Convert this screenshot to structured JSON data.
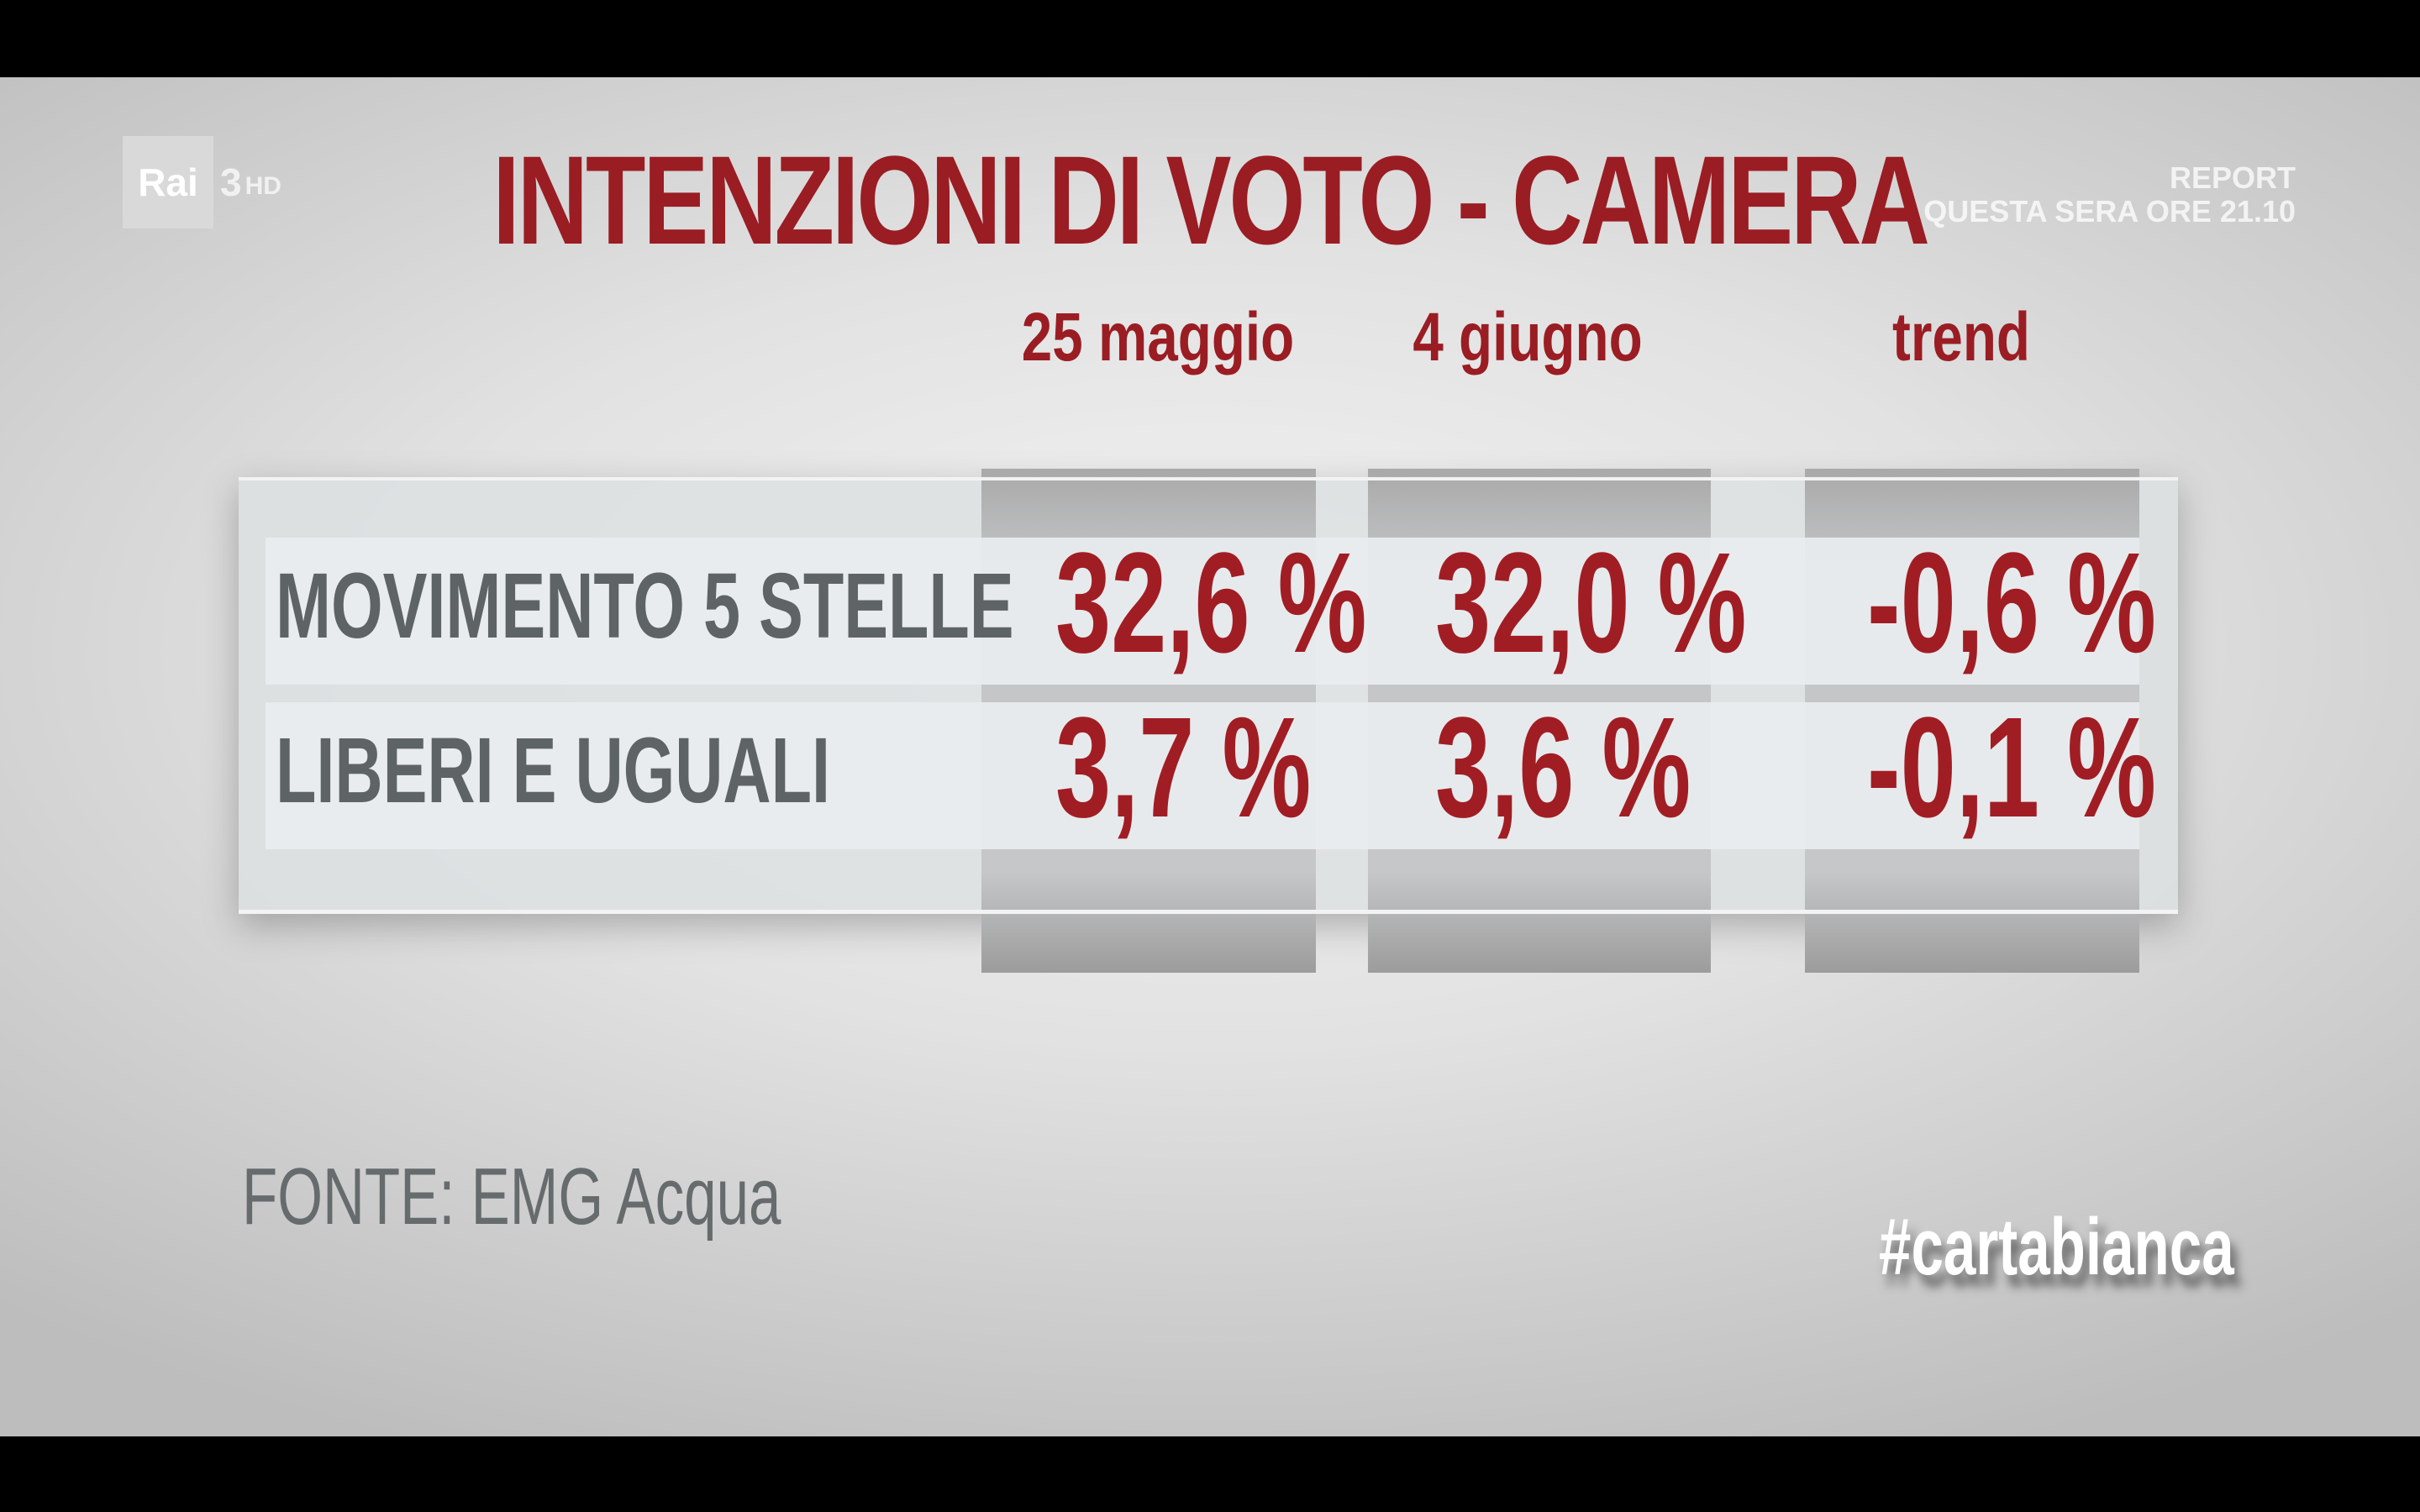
{
  "channel": {
    "logo_text": "Rai",
    "number": "3",
    "suffix": "HD"
  },
  "promo": {
    "line1": "REPORT",
    "line2": "QUESTA SERA ORE 21.10"
  },
  "title": "INTENZIONI DI VOTO - CAMERA",
  "source": "FONTE: EMG Acqua",
  "hashtag": "#cartabianca",
  "chart_data": {
    "type": "table",
    "title": "INTENZIONI DI VOTO - CAMERA",
    "columns": [
      "25 maggio",
      "4 giugno",
      "trend"
    ],
    "rows": [
      {
        "label": "MOVIMENTO 5 STELLE",
        "values": [
          "32,6 %",
          "32,0 %",
          "-0,6 %"
        ]
      },
      {
        "label": "LIBERI E UGUALI",
        "values": [
          "3,7 %",
          "3,6 %",
          "-0,1 %"
        ]
      }
    ]
  },
  "colors": {
    "accent": "#9a1d23",
    "label_gray": "#5e6466"
  }
}
